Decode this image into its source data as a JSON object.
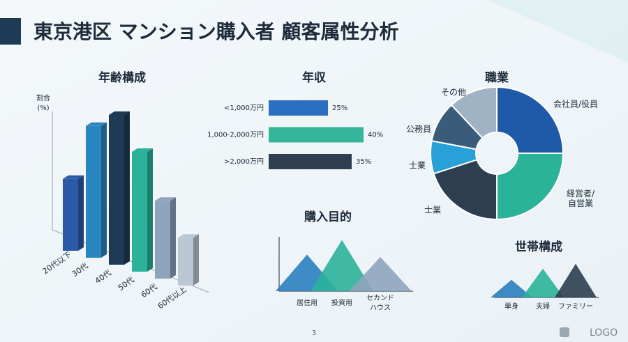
{
  "title": "東京港区 マンション購入者 顧客属性分析",
  "page_number": "3",
  "logo": "LOGO",
  "chart_data": [
    {
      "type": "bar3d",
      "title": "年齢構成",
      "y_label": "割合\n(%)",
      "categories": [
        "20代以下",
        "30代",
        "40代",
        "50代",
        "60代",
        "60代以上"
      ],
      "values": [
        12,
        22,
        25,
        20,
        13,
        8
      ],
      "colors": [
        "#2a5aa8",
        "#2a86c0",
        "#1f3a55",
        "#2ab39a",
        "#8ea4bd",
        "#b9c7d4"
      ]
    },
    {
      "type": "hbar",
      "title": "年収",
      "categories": [
        "<1,000万円",
        "1,000-2,000万円",
        ">2,000万円"
      ],
      "values": [
        25,
        40,
        35
      ],
      "value_labels": [
        "25%",
        "40%",
        "35%"
      ],
      "colors": [
        "#2a6fc0",
        "#36b59a",
        "#2c3e50"
      ]
    },
    {
      "type": "donut",
      "title": "職業",
      "categories": [
        "会社員/役員",
        "経営者/\n自営業",
        "士業",
        "士業",
        "公務員",
        "その他"
      ],
      "values": [
        25,
        25,
        20,
        8,
        10,
        12
      ],
      "colors": [
        "#1e5aa8",
        "#2bb39a",
        "#2c3e50",
        "#2aa0d8",
        "#3a5c7a",
        "#9fb3c4"
      ]
    },
    {
      "type": "mountain",
      "title": "購入目的",
      "categories": [
        "居住用",
        "投資用",
        "セカンド\nハウス"
      ],
      "values": [
        30,
        42,
        28
      ],
      "colors": [
        "#2a7fc0",
        "#2bb39a",
        "#8ea4bd"
      ]
    },
    {
      "type": "mountain",
      "title": "世帯構成",
      "categories": [
        "単身",
        "夫婦",
        "ファミリー"
      ],
      "values": [
        22,
        36,
        42
      ],
      "colors": [
        "#2a7fc0",
        "#2bb39a",
        "#2c3e50"
      ]
    }
  ]
}
